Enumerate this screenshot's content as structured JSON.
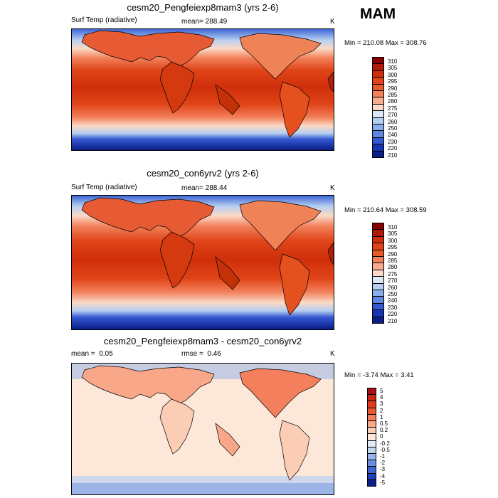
{
  "season": "MAM",
  "chart_data": [
    {
      "type": "heatmap",
      "title": "cesm20_Pengfeiexp8mam3 (yrs 2-6)",
      "variable": "Surf Temp (radiative)",
      "stat_label": "mean=",
      "stat_value": "288.49",
      "units": "K",
      "min_label": "Min =",
      "min": "210.08",
      "max_label": "Max =",
      "max": "308.76",
      "levels": [
        "310",
        "305",
        "300",
        "295",
        "290",
        "285",
        "280",
        "275",
        "270",
        "260",
        "250",
        "240",
        "230",
        "220",
        "210"
      ],
      "colors": [
        "#8a0000",
        "#b01a06",
        "#cf2f0b",
        "#e04418",
        "#ea5b2a",
        "#f2805a",
        "#f7ab8f",
        "#fcd9c6",
        "#dce8f6",
        "#b6cff0",
        "#8aaeea",
        "#5f86e2",
        "#3458d2",
        "#1535b3",
        "#0a1d88"
      ]
    },
    {
      "type": "heatmap",
      "title": "cesm20_con6yrv2 (yrs 2-6)",
      "variable": "Surf Temp (radiative)",
      "stat_label": "mean=",
      "stat_value": "288.44",
      "units": "K",
      "min_label": "Min =",
      "min": "210.64",
      "max_label": "Max =",
      "max": "308.59",
      "levels": [
        "310",
        "305",
        "300",
        "295",
        "290",
        "285",
        "280",
        "275",
        "270",
        "260",
        "250",
        "240",
        "230",
        "220",
        "210"
      ],
      "colors": [
        "#8a0000",
        "#b01a06",
        "#cf2f0b",
        "#e04418",
        "#ea5b2a",
        "#f2805a",
        "#f7ab8f",
        "#fcd9c6",
        "#dce8f6",
        "#b6cff0",
        "#8aaeea",
        "#5f86e2",
        "#3458d2",
        "#1535b3",
        "#0a1d88"
      ]
    },
    {
      "type": "heatmap",
      "title": "cesm20_Pengfeiexp8mam3 - cesm20_con6yrv2",
      "mean_label": "mean =",
      "mean_value": "0.05",
      "rmse_label": "rmse =",
      "rmse_value": "0.46",
      "units": "K",
      "min_label": "Min =",
      "min": "-3.74",
      "max_label": "Max =",
      "max": "3.41",
      "levels": [
        "5",
        "4",
        "3",
        "2",
        "1",
        "0.5",
        "0.2",
        "0",
        "-0.2",
        "-0.5",
        "-1",
        "-2",
        "-3",
        "-4",
        "-5"
      ],
      "colors": [
        "#a50f15",
        "#c62a14",
        "#de3b1c",
        "#ec5a35",
        "#f37f5c",
        "#f8a789",
        "#fbcdb5",
        "#fde7d9",
        "#e2ecf8",
        "#c1d5f1",
        "#97b6ea",
        "#6b8fe0",
        "#3f64d0",
        "#1f40b8",
        "#0b1f8f"
      ]
    }
  ]
}
